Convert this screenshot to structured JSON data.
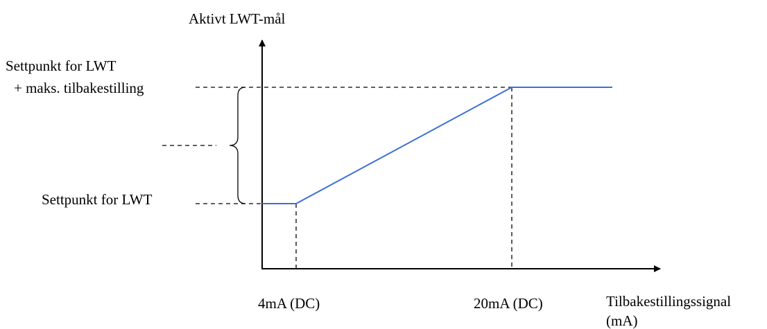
{
  "diagram": {
    "y_axis_title": "Aktivt LWT-mål",
    "x_axis_title_line1": "Tilbakestillingssignal",
    "x_axis_title_line2": "(mA)",
    "label_setpoint_max_line1": "Settpunkt for LWT",
    "label_setpoint_max_line2": "+ maks. tilbakestilling",
    "label_setpoint": "Settpunkt for LWT",
    "tick_4ma": "4mA (DC)",
    "tick_20ma": "20mA (DC)"
  },
  "colors": {
    "curve": "#3b6fd8",
    "axis": "#000000"
  }
}
